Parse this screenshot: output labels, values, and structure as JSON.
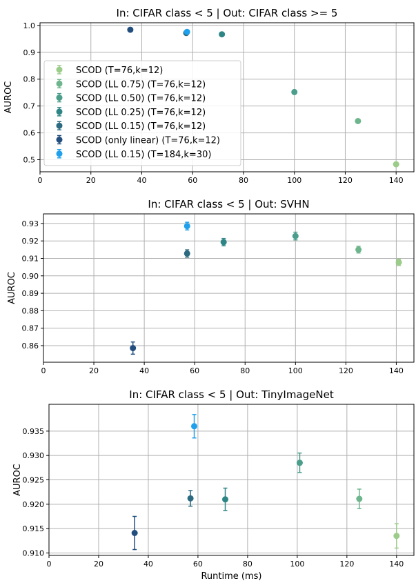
{
  "series_styles": [
    {
      "label": "SCOD (T=76,k=12)",
      "color": "#9ccc8a"
    },
    {
      "label": "SCOD (LL 0.75) (T=76,k=12)",
      "color": "#6db58c"
    },
    {
      "label": "SCOD (LL 0.50) (T=76,k=12)",
      "color": "#4a9e8b"
    },
    {
      "label": "SCOD (LL 0.25) (T=76,k=12)",
      "color": "#2e8585"
    },
    {
      "label": "SCOD (LL 0.15) (T=76,k=12)",
      "color": "#2b6a80"
    },
    {
      "label": "SCOD (only linear) (T=76,k=12)",
      "color": "#224e7f"
    },
    {
      "label": "SCOD (LL 0.15) (T=184,k=30)",
      "color": "#1ea0ec"
    }
  ],
  "chart_data": [
    {
      "type": "scatter",
      "title": "In: CIFAR class < 5 | Out:  CIFAR class >= 5",
      "xlabel": "",
      "ylabel": "AUROC",
      "xlim": [
        0,
        147
      ],
      "ylim": [
        0.455,
        1.01
      ],
      "xticks": [
        0,
        20,
        40,
        60,
        80,
        100,
        120,
        140
      ],
      "yticks": [
        0.5,
        0.6,
        0.7,
        0.8,
        0.9,
        1.0
      ],
      "ytick_labels": [
        "0.5",
        "0.6",
        "0.7",
        "0.8",
        "0.9",
        "1.0"
      ],
      "grid": true,
      "legend": "left",
      "series": [
        {
          "name": "SCOD (T=76,k=12)",
          "x": 140,
          "y": 0.483,
          "err": 0.003
        },
        {
          "name": "SCOD (LL 0.75) (T=76,k=12)",
          "x": 125,
          "y": 0.644,
          "err": 0.003
        },
        {
          "name": "SCOD (LL 0.50) (T=76,k=12)",
          "x": 100,
          "y": 0.752,
          "err": 0.003
        },
        {
          "name": "SCOD (LL 0.25) (T=76,k=12)",
          "x": 71.5,
          "y": 0.967,
          "err": 0.002
        },
        {
          "name": "SCOD (LL 0.15) (T=76,k=12)",
          "x": 57.5,
          "y": 0.972,
          "err": 0.002
        },
        {
          "name": "SCOD (only linear) (T=76,k=12)",
          "x": 35.5,
          "y": 0.984,
          "err": 0.002
        },
        {
          "name": "SCOD (LL 0.15) (T=184,k=30)",
          "x": 57.8,
          "y": 0.976,
          "err": 0.002
        }
      ]
    },
    {
      "type": "scatter",
      "title": "In: CIFAR class < 5 | Out:  SVHN",
      "xlabel": "",
      "ylabel": "AUROC",
      "xlim": [
        0,
        147
      ],
      "ylim": [
        0.8505,
        0.9355
      ],
      "xticks": [
        0,
        20,
        40,
        60,
        80,
        100,
        120,
        140
      ],
      "yticks": [
        0.86,
        0.87,
        0.88,
        0.89,
        0.9,
        0.91,
        0.92,
        0.93
      ],
      "ytick_labels": [
        "0.86",
        "0.87",
        "0.88",
        "0.89",
        "0.90",
        "0.91",
        "0.92",
        "0.93"
      ],
      "grid": true,
      "legend": "none",
      "series": [
        {
          "name": "SCOD (T=76,k=12)",
          "x": 141,
          "y": 0.9077,
          "err": 0.0018
        },
        {
          "name": "SCOD (LL 0.75) (T=76,k=12)",
          "x": 125,
          "y": 0.915,
          "err": 0.0019
        },
        {
          "name": "SCOD (LL 0.50) (T=76,k=12)",
          "x": 100,
          "y": 0.9228,
          "err": 0.0022
        },
        {
          "name": "SCOD (LL 0.25) (T=76,k=12)",
          "x": 71.5,
          "y": 0.9193,
          "err": 0.0021
        },
        {
          "name": "SCOD (LL 0.15) (T=76,k=12)",
          "x": 57,
          "y": 0.9128,
          "err": 0.0021
        },
        {
          "name": "SCOD (only linear) (T=76,k=12)",
          "x": 35.5,
          "y": 0.8586,
          "err": 0.0035
        },
        {
          "name": "SCOD (LL 0.15) (T=184,k=30)",
          "x": 57,
          "y": 0.9285,
          "err": 0.0022
        }
      ]
    },
    {
      "type": "scatter",
      "title": "In: CIFAR class < 5 | Out:  TinyImageNet",
      "xlabel": "Runtime (ms)",
      "ylabel": "AUROC",
      "xlim": [
        0,
        147
      ],
      "ylim": [
        0.9095,
        0.9405
      ],
      "xticks": [
        0,
        20,
        40,
        60,
        80,
        100,
        120,
        140
      ],
      "yticks": [
        0.91,
        0.915,
        0.92,
        0.925,
        0.93,
        0.935
      ],
      "ytick_labels": [
        "0.910",
        "0.915",
        "0.920",
        "0.925",
        "0.930",
        "0.935"
      ],
      "grid": true,
      "legend": "none",
      "series": [
        {
          "name": "SCOD (T=76,k=12)",
          "x": 140,
          "y": 0.9135,
          "err": 0.0025
        },
        {
          "name": "SCOD (LL 0.75) (T=76,k=12)",
          "x": 125,
          "y": 0.9211,
          "err": 0.002
        },
        {
          "name": "SCOD (LL 0.50) (T=76,k=12)",
          "x": 101,
          "y": 0.9285,
          "err": 0.002
        },
        {
          "name": "SCOD (LL 0.25) (T=76,k=12)",
          "x": 71,
          "y": 0.921,
          "err": 0.0023
        },
        {
          "name": "SCOD (LL 0.15) (T=76,k=12)",
          "x": 57,
          "y": 0.9212,
          "err": 0.0016
        },
        {
          "name": "SCOD (only linear) (T=76,k=12)",
          "x": 34.5,
          "y": 0.9141,
          "err": 0.0034
        },
        {
          "name": "SCOD (LL 0.15) (T=184,k=30)",
          "x": 58.5,
          "y": 0.936,
          "err": 0.0024
        }
      ]
    }
  ]
}
